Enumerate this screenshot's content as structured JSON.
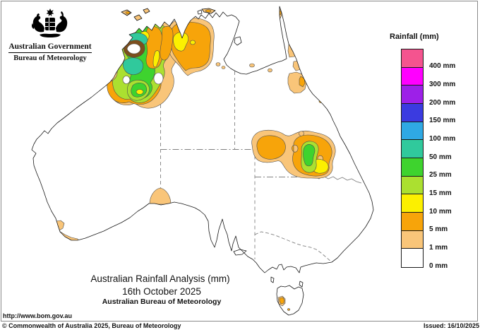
{
  "header": {
    "government": "Australian Government",
    "bureau": "Bureau of Meteorology"
  },
  "legend": {
    "title": "Rainfall (mm)",
    "entries": [
      {
        "label": "400 mm",
        "color": "#F4548F"
      },
      {
        "label": "300 mm",
        "color": "#FF00FF"
      },
      {
        "label": "200 mm",
        "color": "#9D20E8"
      },
      {
        "label": "150 mm",
        "color": "#3B3BE0"
      },
      {
        "label": "100 mm",
        "color": "#2FA9E4"
      },
      {
        "label": "50 mm",
        "color": "#30C99C"
      },
      {
        "label": "25 mm",
        "color": "#3ED32E"
      },
      {
        "label": "15 mm",
        "color": "#ABE030"
      },
      {
        "label": "10 mm",
        "color": "#FCF000"
      },
      {
        "label": "5 mm",
        "color": "#F7A40A"
      },
      {
        "label": "1 mm",
        "color": "#F9C579"
      },
      {
        "label": "0 mm",
        "color": "#FFFFFF"
      }
    ]
  },
  "caption": {
    "line1": "Australian Rainfall Analysis (mm)",
    "line2": "16th October 2025",
    "line3": "Australian Bureau of Meteorology"
  },
  "footer": {
    "url": "http://www.bom.gov.au",
    "copyright": "© Commonwealth of Australia 2025, Bureau of Meteorology",
    "issued": "Issued: 16/10/2025"
  },
  "map_summary": {
    "rain_regions": [
      {
        "area": "Kimberley / north-west WA",
        "max_band": "50-100 mm"
      },
      {
        "area": "Top End NT",
        "max_band": "10-15 mm"
      },
      {
        "area": "central Queensland",
        "max_band": "25-50 mm"
      },
      {
        "area": "east Cape York coast",
        "max_band": "1-10 mm"
      },
      {
        "area": "head of Great Australian Bight",
        "max_band": "1-5 mm"
      },
      {
        "area": "south-west WA coast",
        "max_band": "1-5 mm"
      },
      {
        "area": "western Tasmania",
        "max_band": "5-10 mm"
      }
    ]
  }
}
